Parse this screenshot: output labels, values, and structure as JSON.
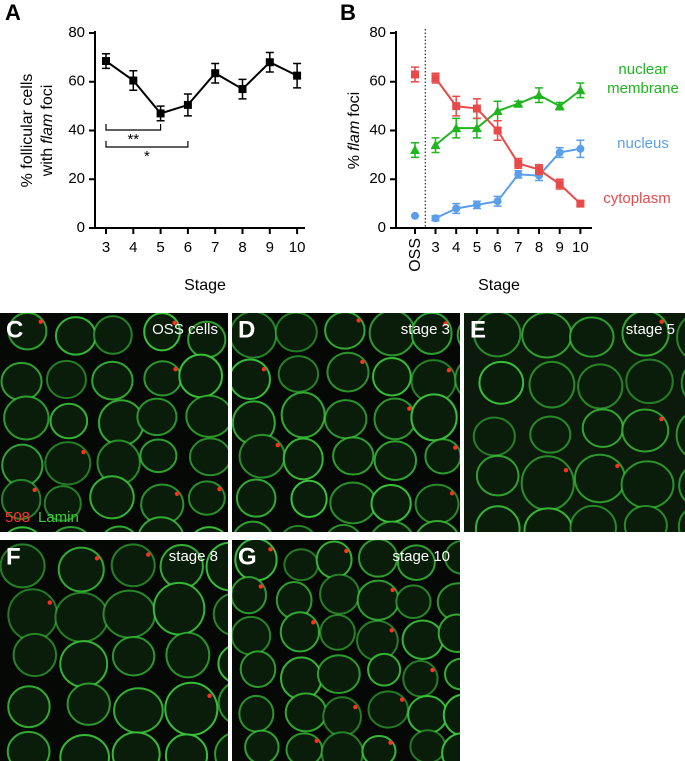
{
  "chart_data": [
    {
      "type": "line",
      "panel": "A",
      "ylabel": [
        "% follicular cells",
        "with",
        "flam",
        "foci"
      ],
      "xlabel": "Stage",
      "categories": [
        "3",
        "4",
        "5",
        "6",
        "7",
        "8",
        "9",
        "10"
      ],
      "series": [
        {
          "color": "#000000",
          "marker": "square",
          "values": [
            68.5,
            60.5,
            47,
            50.5,
            63.5,
            57,
            68,
            62.5
          ],
          "errors": [
            3,
            4,
            3,
            4.5,
            4,
            4,
            4,
            5
          ]
        }
      ],
      "ylim": [
        0,
        80
      ],
      "yticks": [
        0,
        20,
        40,
        60,
        80
      ],
      "significance": [
        {
          "between": [
            "3",
            "5"
          ],
          "label": "**"
        },
        {
          "between": [
            "3",
            "6"
          ],
          "label": "*"
        }
      ]
    },
    {
      "type": "line",
      "panel": "B",
      "ylabel": [
        "%",
        "flam",
        "foci"
      ],
      "xlabel": "Stage",
      "oss_label": "OSS",
      "categories": [
        "3",
        "4",
        "5",
        "6",
        "7",
        "8",
        "9",
        "10"
      ],
      "series": [
        {
          "name": "nuclear membrane",
          "color": "#1fb51f",
          "marker": "triangle",
          "values": [
            34,
            41,
            41,
            48,
            51,
            54.5,
            50,
            56.5
          ],
          "errors": [
            3,
            4,
            4,
            4,
            1,
            3,
            1.5,
            3
          ],
          "oss_value": 32,
          "oss_error": 3
        },
        {
          "name": "nucleus",
          "color": "#5b9ee9",
          "marker": "circle",
          "values": [
            4,
            8,
            9.5,
            11,
            22,
            21.5,
            31,
            32.5
          ],
          "errors": [
            1,
            2,
            1.5,
            2,
            1.5,
            2,
            2,
            3.5
          ],
          "oss_value": 5,
          "oss_error": 0
        },
        {
          "name": "cytoplasm",
          "color": "#e84a4a",
          "marker": "square",
          "values": [
            61.5,
            50,
            49,
            40,
            26.5,
            24,
            18,
            10
          ],
          "errors": [
            2,
            4,
            4,
            4,
            2,
            2,
            2,
            1
          ],
          "oss_value": 63,
          "oss_error": 3
        }
      ],
      "ylim": [
        0,
        80
      ],
      "yticks": [
        0,
        20,
        40,
        60,
        80
      ]
    }
  ],
  "panels": [
    {
      "label": "C",
      "caption": "OSS cells",
      "stain": [
        "508",
        "Lamin"
      ]
    },
    {
      "label": "D",
      "caption": "stage 3"
    },
    {
      "label": "E",
      "caption": "stage 5"
    },
    {
      "label": "F",
      "caption": "stage 8"
    },
    {
      "label": "G",
      "caption": "stage 10"
    }
  ]
}
